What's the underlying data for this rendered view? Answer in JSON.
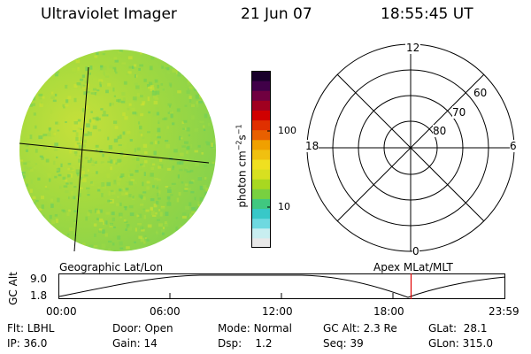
{
  "header": {
    "instrument": "Ultraviolet Imager",
    "date": "21 Jun 07",
    "time": "18:55:45 UT"
  },
  "colorbar": {
    "unit_label": "photon cm",
    "unit_sup1": "−2",
    "unit_mid": "s",
    "unit_sup2": "−1",
    "ticks": [
      "100",
      "10"
    ],
    "colors_bottom_to_top": [
      "#e8e8e8",
      "#c8eef0",
      "#6ed9e0",
      "#38c8c8",
      "#40c880",
      "#78d040",
      "#a8d820",
      "#d8e020",
      "#f0e020",
      "#f0c010",
      "#f0a000",
      "#e86000",
      "#e03000",
      "#d00000",
      "#a00020",
      "#700040",
      "#400048",
      "#18002a"
    ]
  },
  "polar_plot": {
    "hour_labels": {
      "top": "12",
      "left": "18",
      "right": "6",
      "bottom": "0"
    },
    "lat_labels": [
      "60",
      "70",
      "80"
    ]
  },
  "timeline": {
    "left_title": "Geographic Lat/Lon",
    "right_title": "Apex MLat/MLT",
    "axis_label": "GC Alt",
    "y_ticks": [
      "9.0",
      "1.8"
    ],
    "x_ticks": [
      "00:00",
      "06:00",
      "12:00",
      "18:00",
      "23:59"
    ],
    "marker_time": "18:55:45"
  },
  "status": {
    "row1": [
      {
        "key": "Flt:",
        "value": "LBHL"
      },
      {
        "key": "Door:",
        "value": "Open"
      },
      {
        "key": "Mode:",
        "value": "Normal"
      },
      {
        "key": "GC Alt:",
        "value": "2.3 Re"
      },
      {
        "key": "GLat:",
        "value": "28.1"
      }
    ],
    "row2": [
      {
        "key": "IP:",
        "value": "36.0"
      },
      {
        "key": "Gain:",
        "value": "14"
      },
      {
        "key": "Dsp:",
        "value": "1.2"
      },
      {
        "key": "Seq:",
        "value": "39"
      },
      {
        "key": "GLon:",
        "value": "315.0"
      }
    ]
  },
  "colors": {
    "earth_base": "#8fd64a",
    "earth_bright": "#c8e23a",
    "marker": "#e00000"
  }
}
